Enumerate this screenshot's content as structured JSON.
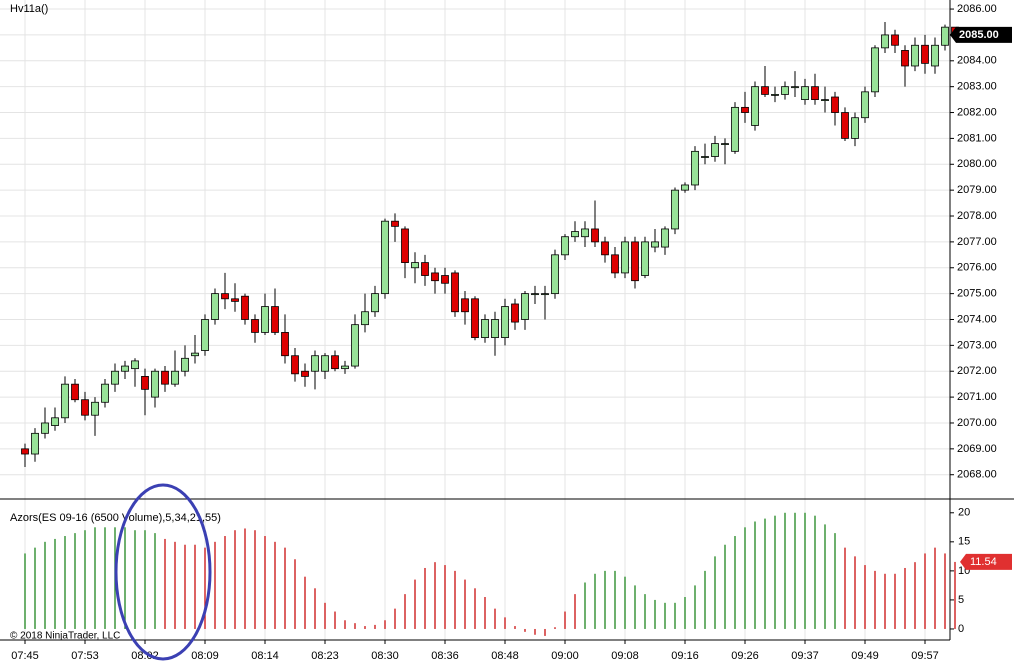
{
  "chart_data": [
    {
      "type": "candlestick",
      "title": "Hv11a()",
      "categories": [
        "07:45",
        null,
        null,
        null,
        null,
        null,
        "07:53",
        null,
        null,
        null,
        null,
        null,
        "08:02",
        null,
        null,
        null,
        null,
        null,
        "08:09",
        null,
        null,
        null,
        null,
        null,
        "08:14",
        null,
        null,
        null,
        null,
        null,
        "08:23",
        null,
        null,
        null,
        null,
        null,
        "08:30",
        null,
        null,
        null,
        null,
        null,
        "08:36",
        null,
        null,
        null,
        null,
        null,
        "08:48",
        null,
        null,
        null,
        null,
        null,
        "09:00",
        null,
        null,
        null,
        null,
        null,
        "09:08",
        null,
        null,
        null,
        null,
        null,
        "09:16",
        null,
        null,
        null,
        null,
        null,
        "09:26",
        null,
        null,
        null,
        null,
        null,
        "09:37",
        null,
        null,
        null,
        null,
        null,
        "09:49",
        null,
        null,
        null,
        null,
        null,
        "09:57",
        null,
        null,
        null
      ],
      "open": [
        2069.0,
        2068.8,
        2069.6,
        2069.9,
        2070.2,
        2071.5,
        2070.9,
        2070.3,
        2070.8,
        2071.5,
        2072.0,
        2072.1,
        2071.8,
        2071.0,
        2072.0,
        2071.5,
        2072.0,
        2072.6,
        2072.8,
        2074.0,
        2075.0,
        2074.8,
        2074.9,
        2074.0,
        2073.5,
        2074.5,
        2073.5,
        2072.6,
        2072.0,
        2072.0,
        2072.0,
        2072.6,
        2072.1,
        2072.2,
        2073.8,
        2074.3,
        2075.0,
        2077.8,
        2077.5,
        2076.0,
        2076.2,
        2075.8,
        2075.7,
        2075.8,
        2074.8,
        2074.8,
        2073.3,
        2073.3,
        2073.3,
        2074.6,
        2074.0,
        2075.0,
        2075.0,
        2075.0,
        2076.5,
        2077.2,
        2077.2,
        2077.5,
        2077.0,
        2076.5,
        2075.8,
        2077.0,
        2075.7,
        2076.8,
        2076.8,
        2077.5,
        2079.0,
        2079.2,
        2080.3,
        2080.3,
        2080.8,
        2080.5,
        2082.2,
        2081.5,
        2083.0,
        2082.7,
        2082.7,
        2083.0,
        2082.5,
        2083.0,
        2082.5,
        2082.6,
        2082.0,
        2081.0,
        2081.8,
        2082.8,
        2084.5,
        2085.0,
        2084.4,
        2083.8,
        2084.6,
        2083.8,
        2084.6,
        2085.3
      ],
      "high": [
        2069.2,
        2069.8,
        2070.6,
        2070.6,
        2071.8,
        2071.7,
        2071.2,
        2071.0,
        2071.7,
        2072.3,
        2072.4,
        2072.5,
        2072.1,
        2072.1,
        2072.2,
        2072.8,
        2073.0,
        2073.4,
        2074.2,
        2075.2,
        2075.8,
        2075.4,
        2075.0,
        2074.2,
        2075.0,
        2075.2,
        2074.2,
        2072.9,
        2072.3,
        2072.8,
        2072.7,
        2072.8,
        2072.4,
        2074.2,
        2075.0,
        2075.3,
        2077.9,
        2078.1,
        2077.6,
        2076.6,
        2076.5,
        2076.0,
        2076.0,
        2075.9,
        2075.1,
        2074.9,
        2074.2,
        2074.3,
        2074.8,
        2074.8,
        2075.1,
        2075.3,
        2075.3,
        2076.7,
        2077.3,
        2077.8,
        2077.8,
        2078.6,
        2077.2,
        2076.8,
        2077.2,
        2077.2,
        2077.2,
        2077.5,
        2077.6,
        2079.1,
        2079.3,
        2080.7,
        2080.8,
        2081.1,
        2081.0,
        2082.4,
        2082.8,
        2083.2,
        2083.8,
        2083.0,
        2083.2,
        2083.6,
        2083.3,
        2083.5,
        2083.0,
        2082.8,
        2082.2,
        2082.0,
        2083.0,
        2084.6,
        2085.5,
        2085.2,
        2084.6,
        2084.9,
        2085.0,
        2084.9,
        2085.4,
        2085.3
      ],
      "low": [
        2068.3,
        2068.5,
        2069.4,
        2069.7,
        2070.0,
        2070.8,
        2070.1,
        2069.5,
        2070.6,
        2071.2,
        2071.7,
        2071.4,
        2070.3,
        2070.6,
        2071.2,
        2071.4,
        2071.8,
        2072.3,
        2072.6,
        2073.8,
        2074.4,
        2074.3,
        2073.8,
        2073.1,
        2073.4,
        2073.4,
        2072.3,
        2071.6,
        2071.4,
        2071.3,
        2071.7,
        2072.0,
        2071.9,
        2072.1,
        2073.5,
        2074.1,
        2074.8,
        2077.0,
        2075.6,
        2075.4,
        2075.3,
        2075.0,
        2075.0,
        2074.1,
        2073.8,
        2073.2,
        2073.1,
        2072.6,
        2073.0,
        2073.6,
        2073.6,
        2074.6,
        2074.0,
        2074.8,
        2076.3,
        2077.0,
        2076.8,
        2076.8,
        2076.2,
        2075.6,
        2075.6,
        2075.2,
        2075.6,
        2076.6,
        2076.5,
        2077.3,
        2078.9,
        2079.0,
        2080.0,
        2080.1,
        2080.0,
        2080.4,
        2081.6,
        2081.3,
        2082.6,
        2082.4,
        2082.5,
        2082.6,
        2082.3,
        2082.3,
        2082.0,
        2081.5,
        2080.9,
        2080.7,
        2081.6,
        2082.6,
        2084.3,
        2084.3,
        2083.0,
        2083.6,
        2083.5,
        2083.5,
        2084.4,
        2084.8
      ],
      "close": [
        2068.8,
        2069.6,
        2070.0,
        2070.2,
        2071.5,
        2070.9,
        2070.3,
        2070.8,
        2071.5,
        2072.0,
        2072.2,
        2072.4,
        2071.3,
        2072.0,
        2071.5,
        2072.0,
        2072.5,
        2072.7,
        2074.0,
        2075.0,
        2074.8,
        2074.7,
        2074.0,
        2073.5,
        2074.5,
        2073.5,
        2072.6,
        2071.9,
        2071.8,
        2072.6,
        2072.6,
        2072.1,
        2072.2,
        2073.8,
        2074.3,
        2075.0,
        2077.8,
        2077.6,
        2076.2,
        2076.2,
        2075.7,
        2075.5,
        2075.4,
        2074.3,
        2074.3,
        2073.3,
        2074.0,
        2074.0,
        2074.5,
        2073.9,
        2075.0,
        2075.0,
        2075.0,
        2076.5,
        2077.2,
        2077.4,
        2077.5,
        2077.0,
        2076.5,
        2075.8,
        2077.0,
        2075.5,
        2077.0,
        2077.0,
        2077.5,
        2079.0,
        2079.2,
        2080.5,
        2080.3,
        2080.8,
        2080.8,
        2082.2,
        2082.0,
        2083.0,
        2082.7,
        2082.7,
        2083.0,
        2083.0,
        2083.0,
        2082.5,
        2082.5,
        2082.0,
        2081.0,
        2081.8,
        2082.8,
        2084.5,
        2085.0,
        2084.6,
        2083.8,
        2084.6,
        2083.9,
        2084.6,
        2085.3,
        2085.0
      ],
      "up_color": "#98e298",
      "down_color": "#dd0000",
      "ylim": [
        2067.1,
        2086.35
      ],
      "yticks": [
        {
          "value": 2068,
          "label": "2068.00"
        },
        {
          "value": 2069,
          "label": "2069.00"
        },
        {
          "value": 2070,
          "label": "2070.00"
        },
        {
          "value": 2071,
          "label": "2071.00"
        },
        {
          "value": 2072,
          "label": "2072.00"
        },
        {
          "value": 2073,
          "label": "2073.00"
        },
        {
          "value": 2074,
          "label": "2074.00"
        },
        {
          "value": 2075,
          "label": "2075.00"
        },
        {
          "value": 2076,
          "label": "2076.00"
        },
        {
          "value": 2077,
          "label": "2077.00"
        },
        {
          "value": 2078,
          "label": "2078.00"
        },
        {
          "value": 2079,
          "label": "2079.00"
        },
        {
          "value": 2080,
          "label": "2080.00"
        },
        {
          "value": 2081,
          "label": "2081.00"
        },
        {
          "value": 2082,
          "label": "2082.00"
        },
        {
          "value": 2083,
          "label": "2083.00"
        },
        {
          "value": 2084,
          "label": "2084.00"
        },
        {
          "value": 2085,
          "label": "2085.00"
        },
        {
          "value": 2086,
          "label": "2086.00"
        }
      ],
      "last_price": {
        "value": 2085,
        "label": "2085.00"
      },
      "grid": true
    },
    {
      "type": "bar",
      "title": "Azors(ES 09-16 (6500 Volume),5,34,21,55)",
      "values": [
        13,
        14,
        15,
        15.5,
        16,
        16.5,
        17,
        17.5,
        17.5,
        17.5,
        17.5,
        17,
        17,
        16.5,
        15.5,
        15,
        14.5,
        14.5,
        14,
        15,
        16,
        17,
        17.3,
        17,
        16,
        15,
        14,
        12,
        9,
        7,
        4.5,
        3,
        1.5,
        1,
        0.5,
        0.7,
        1.5,
        3.5,
        6,
        8.5,
        10.5,
        11.5,
        11,
        10,
        8.5,
        7,
        5.5,
        3.5,
        2,
        0.5,
        -0.5,
        -1,
        -1.2,
        0.3,
        3,
        6,
        8,
        9.5,
        10,
        10,
        9,
        7.5,
        6,
        5,
        4.5,
        4.5,
        5.5,
        7.5,
        10,
        12.5,
        14.5,
        16,
        17.5,
        18.5,
        19,
        19.5,
        20,
        20,
        20,
        19.5,
        18,
        16.5,
        14,
        12.5,
        11,
        10,
        9.5,
        9.5,
        10.5,
        11.5,
        13,
        14,
        13,
        11.54
      ],
      "colors": [
        "#2f8f2f",
        "#2f8f2f",
        "#2f8f2f",
        "#2f8f2f",
        "#2f8f2f",
        "#2f8f2f",
        "#2f8f2f",
        "#2f8f2f",
        "#2f8f2f",
        "#2f8f2f",
        "#2f8f2f",
        "#2f8f2f",
        "#2f8f2f",
        "#2f8f2f",
        "#cc2020",
        "#cc2020",
        "#cc2020",
        "#cc2020",
        "#cc2020",
        "#cc2020",
        "#cc2020",
        "#cc2020",
        "#cc2020",
        "#cc2020",
        "#cc2020",
        "#cc2020",
        "#cc2020",
        "#cc2020",
        "#cc2020",
        "#cc2020",
        "#cc2020",
        "#cc2020",
        "#cc2020",
        "#cc2020",
        "#cc2020",
        "#cc2020",
        "#cc2020",
        "#cc2020",
        "#cc2020",
        "#cc2020",
        "#cc2020",
        "#cc2020",
        "#cc2020",
        "#cc2020",
        "#cc2020",
        "#cc2020",
        "#cc2020",
        "#cc2020",
        "#cc2020",
        "#cc2020",
        "#cc2020",
        "#cc2020",
        "#cc2020",
        "#cc2020",
        "#cc2020",
        "#cc2020",
        "#2f8f2f",
        "#2f8f2f",
        "#2f8f2f",
        "#2f8f2f",
        "#2f8f2f",
        "#2f8f2f",
        "#2f8f2f",
        "#2f8f2f",
        "#2f8f2f",
        "#2f8f2f",
        "#2f8f2f",
        "#2f8f2f",
        "#2f8f2f",
        "#2f8f2f",
        "#2f8f2f",
        "#2f8f2f",
        "#2f8f2f",
        "#2f8f2f",
        "#2f8f2f",
        "#2f8f2f",
        "#2f8f2f",
        "#2f8f2f",
        "#2f8f2f",
        "#2f8f2f",
        "#2f8f2f",
        "#2f8f2f",
        "#cc2020",
        "#cc2020",
        "#cc2020",
        "#cc2020",
        "#cc2020",
        "#cc2020",
        "#cc2020",
        "#cc2020",
        "#cc2020",
        "#cc2020",
        "#cc2020",
        "#cc2020"
      ],
      "last_value_label": "11.54",
      "last_label_color": "#e03030",
      "ylim": [
        -1.9,
        22.2
      ],
      "yticks": [
        0,
        5,
        10,
        15,
        20
      ],
      "grid": false
    }
  ],
  "footer": "© 2018 NinjaTrader, LLC"
}
